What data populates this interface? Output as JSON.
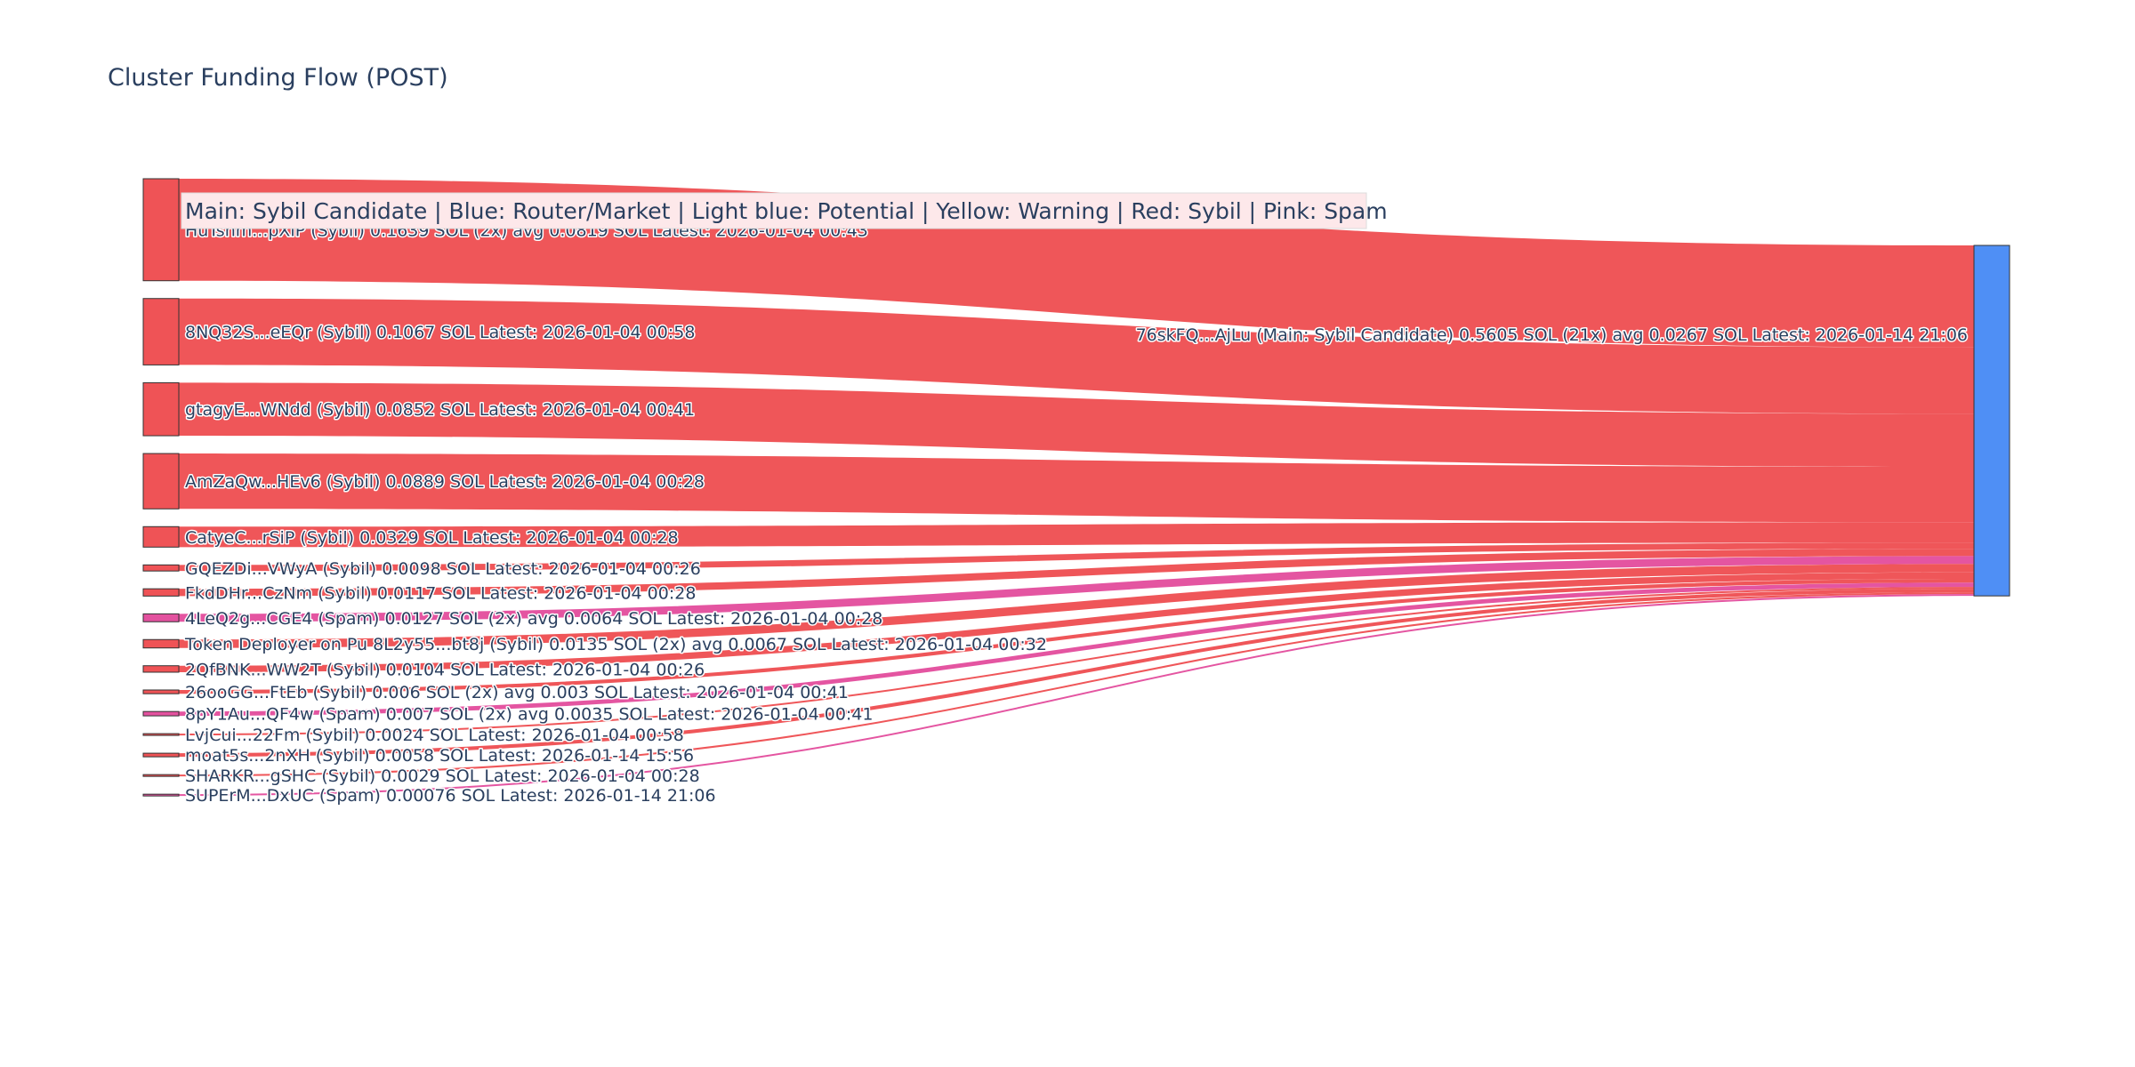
{
  "chart_data": {
    "type": "sankey",
    "title": "Cluster Funding Flow (POST)",
    "legend_note": "Main: Sybil Candidate  |  Blue: Router/Market | Light blue: Potential | Yellow: Warning | Red: Sybil | Pink: Spam",
    "colors": {
      "sybil": "#ef5356",
      "spam": "#e3529f",
      "main": "#4f8ff5",
      "node_outline": "#333333"
    },
    "target": {
      "label": "76skFQ...AjLu (Main: Sybil Candidate) 0.5605 SOL (21x) avg 0.0267 SOL Latest: 2026-01-14 21:06",
      "value": 0.5605,
      "category": "main"
    },
    "sources": [
      {
        "label": "HuTshm...pXiP (Sybil) 0.1639 SOL (2x) avg 0.0819 SOL Latest: 2026-01-04 00:43",
        "value": 0.1639,
        "category": "sybil"
      },
      {
        "label": "8NQ32S...eEQr (Sybil) 0.1067 SOL Latest: 2026-01-04 00:58",
        "value": 0.1067,
        "category": "sybil"
      },
      {
        "label": "gtagyE...WNdd (Sybil) 0.0852 SOL Latest: 2026-01-04 00:41",
        "value": 0.0852,
        "category": "sybil"
      },
      {
        "label": "AmZaQw...HEv6 (Sybil) 0.0889 SOL Latest: 2026-01-04 00:28",
        "value": 0.0889,
        "category": "sybil"
      },
      {
        "label": "CatyeC...rSiP (Sybil) 0.0329 SOL Latest: 2026-01-04 00:28",
        "value": 0.0329,
        "category": "sybil"
      },
      {
        "label": "GQEZDi...VWyA (Sybil) 0.0098 SOL Latest: 2026-01-04 00:26",
        "value": 0.0098,
        "category": "sybil"
      },
      {
        "label": "FkdDHr...CzNm (Sybil) 0.0117 SOL Latest: 2026-01-04 00:28",
        "value": 0.0117,
        "category": "sybil"
      },
      {
        "label": "4LeQ2g...CGE4 (Spam) 0.0127 SOL (2x) avg 0.0064 SOL Latest: 2026-01-04 00:28",
        "value": 0.0127,
        "category": "spam"
      },
      {
        "label": "Token Deployer on Pu 8L2y55...bt8j (Sybil) 0.0135 SOL (2x) avg 0.0067 SOL Latest: 2026-01-04 00:32",
        "value": 0.0135,
        "category": "sybil"
      },
      {
        "label": "2QfBNK...WW2T (Sybil) 0.0104 SOL Latest: 2026-01-04 00:26",
        "value": 0.0104,
        "category": "sybil"
      },
      {
        "label": "26ooGG...FtEb (Sybil) 0.006 SOL (2x) avg 0.003 SOL Latest: 2026-01-04 00:41",
        "value": 0.006,
        "category": "sybil"
      },
      {
        "label": "8pY1Au...QF4w (Spam) 0.007 SOL (2x) avg 0.0035 SOL Latest: 2026-01-04 00:41",
        "value": 0.007,
        "category": "spam"
      },
      {
        "label": "LvjCui...22Fm (Sybil) 0.0024 SOL Latest: 2026-01-04 00:58",
        "value": 0.0024,
        "category": "sybil"
      },
      {
        "label": "moat5s...2nXH (Sybil) 0.0058 SOL Latest: 2026-01-14 15:56",
        "value": 0.0058,
        "category": "sybil"
      },
      {
        "label": "SHARKR...gSHC (Sybil) 0.0029 SOL Latest: 2026-01-04 00:28",
        "value": 0.0029,
        "category": "sybil"
      },
      {
        "label": "SUPErM...DxUC (Spam) 0.00076 SOL Latest: 2026-01-14 21:06",
        "value": 0.00076,
        "category": "spam"
      }
    ]
  }
}
